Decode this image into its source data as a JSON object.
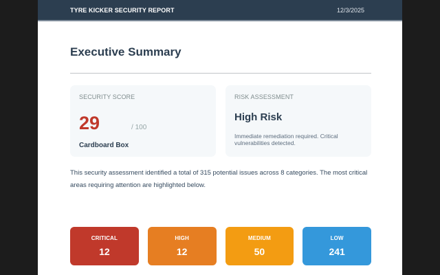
{
  "header": {
    "title": "TYRE KICKER SECURITY REPORT",
    "date": "12/3/2025"
  },
  "main": {
    "title": "Executive Summary",
    "security_score": {
      "label": "SECURITY SCORE",
      "value": "29",
      "max": "/ 100",
      "grade": "Cardboard Box",
      "color": "#c0392b"
    },
    "risk_assessment": {
      "label": "RISK ASSESSMENT",
      "level": "High Risk",
      "description": "Immediate remediation required. Critical vulnerabilities detected."
    },
    "summary": "This security assessment identified a total of 315 potential issues across 8 categories. The most critical areas requiring attention are highlighted below.",
    "severity": [
      {
        "label": "CRITICAL",
        "value": "12",
        "color": "#c0392b"
      },
      {
        "label": "HIGH",
        "value": "12",
        "color": "#e67e22"
      },
      {
        "label": "MEDIUM",
        "value": "50",
        "color": "#f39c12"
      },
      {
        "label": "LOW",
        "value": "241",
        "color": "#3498db"
      }
    ]
  }
}
